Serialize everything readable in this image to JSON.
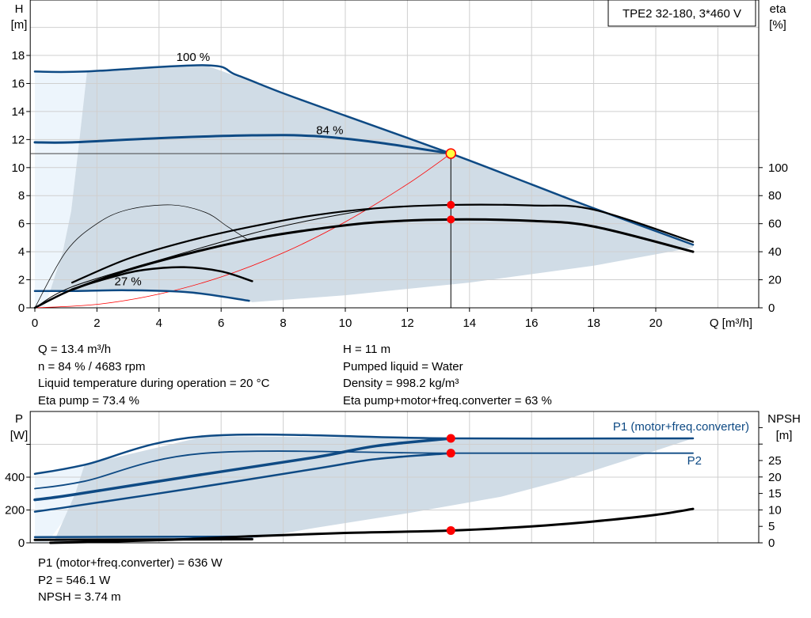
{
  "chart_data": [
    {
      "type": "line",
      "title": "TPE2 32-180, 3*460 V",
      "xlabel": "Q [m³/h]",
      "ylabel": "H",
      "ylabel_unit": "[m]",
      "y2label": "eta",
      "y2label_unit": "[%]",
      "xlim": [
        0,
        23.3
      ],
      "ylim": [
        0,
        22
      ],
      "y2lim": [
        0,
        220
      ],
      "xticks": [
        "0",
        "2",
        "4",
        "6",
        "8",
        "10",
        "12",
        "14",
        "16",
        "18",
        "20"
      ],
      "yticks": [
        "0",
        "2",
        "4",
        "6",
        "8",
        "10",
        "12",
        "14",
        "16",
        "18"
      ],
      "y2ticks": [
        "0",
        "20",
        "40",
        "60",
        "80",
        "100"
      ],
      "grid": true,
      "curve_labels": [
        "100 %",
        "84 %",
        "27 %"
      ],
      "head_series": {
        "max_100": [
          [
            0,
            16.85
          ],
          [
            1.6,
            16.85
          ],
          [
            5.5,
            17.3
          ],
          [
            6.5,
            16.6
          ],
          [
            8,
            15.3
          ],
          [
            10,
            13.7
          ],
          [
            13.4,
            11
          ],
          [
            16,
            8.8
          ],
          [
            18,
            7.1
          ],
          [
            21.2,
            4.5
          ]
        ],
        "speed_84": [
          [
            0,
            11.8
          ],
          [
            1.2,
            11.8
          ],
          [
            4,
            12.1
          ],
          [
            7,
            12.3
          ],
          [
            9,
            12.25
          ],
          [
            11,
            11.8
          ],
          [
            13.4,
            11
          ]
        ],
        "min_27": [
          [
            0,
            1.2
          ],
          [
            1.2,
            1.2
          ],
          [
            3,
            1.25
          ],
          [
            5,
            1.1
          ],
          [
            6.9,
            0.5
          ]
        ],
        "system_curve": [
          [
            0,
            0
          ],
          [
            2,
            0.245
          ],
          [
            4,
            0.98
          ],
          [
            6,
            2.2
          ],
          [
            8,
            3.92
          ],
          [
            10,
            6.13
          ],
          [
            12,
            8.82
          ],
          [
            13.4,
            11
          ]
        ]
      },
      "eta_series": {
        "eta_pump_100": [
          [
            1.2,
            18
          ],
          [
            3,
            35
          ],
          [
            5,
            48
          ],
          [
            7,
            58
          ],
          [
            9,
            66
          ],
          [
            11,
            71
          ],
          [
            13.4,
            73.4
          ],
          [
            16,
            73
          ],
          [
            18,
            70
          ],
          [
            21.2,
            47
          ]
        ],
        "eta_total_100": [
          [
            1.2,
            13
          ],
          [
            3,
            27
          ],
          [
            5,
            39
          ],
          [
            7,
            49
          ],
          [
            9,
            56
          ],
          [
            11,
            61
          ],
          [
            13.4,
            63
          ],
          [
            16,
            62
          ],
          [
            18,
            58
          ],
          [
            21.2,
            40
          ]
        ],
        "eta_other": [
          [
            0,
            0
          ],
          [
            1.2,
            15
          ],
          [
            4,
            34
          ],
          [
            7,
            53
          ],
          [
            9,
            63
          ],
          [
            11,
            71
          ]
        ],
        "eta_pump_min": [
          [
            0,
            0
          ],
          [
            1,
            40
          ],
          [
            2,
            60
          ],
          [
            3,
            70
          ],
          [
            4.4,
            73.4
          ],
          [
            5.5,
            68
          ],
          [
            6.2,
            58
          ],
          [
            6.9,
            48
          ]
        ],
        "eta_total_min": [
          [
            0,
            0
          ],
          [
            1.2,
            13
          ],
          [
            2.5,
            22
          ],
          [
            3.5,
            27
          ],
          [
            4.8,
            29
          ],
          [
            6,
            26
          ],
          [
            7,
            19
          ]
        ]
      },
      "operating_point": {
        "Q": 13.4,
        "H": 11,
        "eta_pump": 73.4,
        "eta_total": 63
      },
      "colors": {
        "curve": "#0e4a84",
        "area": "#d0dce6",
        "area_light": "#edf5fc",
        "system": "#ff0000",
        "point": "#ff0000",
        "duty_fill": "#ffff40"
      }
    },
    {
      "type": "line",
      "ylabel": "P",
      "ylabel_unit": "[W]",
      "y2label": "NPSH",
      "y2label_unit": "[m]",
      "xlim": [
        0,
        23.3
      ],
      "ylim": [
        0,
        800
      ],
      "y2lim": [
        0,
        40
      ],
      "yticks": [
        "0",
        "200",
        "400"
      ],
      "y2ticks": [
        "0",
        "5",
        "10",
        "15",
        "20",
        "25"
      ],
      "grid": true,
      "series_labels": [
        "P1 (motor+freq.converter)",
        "P2"
      ],
      "power_series": {
        "p1_max": [
          [
            0,
            420
          ],
          [
            1.6,
            475
          ],
          [
            5.5,
            650
          ],
          [
            13.4,
            636
          ],
          [
            21.2,
            636
          ]
        ],
        "p2_max": [
          [
            0,
            330
          ],
          [
            1.6,
            375
          ],
          [
            5.5,
            546
          ],
          [
            13.4,
            546
          ],
          [
            21.2,
            546
          ]
        ],
        "p1_84": [
          [
            0,
            262
          ],
          [
            1.2,
            292
          ],
          [
            5,
            405
          ],
          [
            9,
            520
          ],
          [
            11,
            590
          ],
          [
            13.4,
            636
          ]
        ],
        "p2_84": [
          [
            0,
            190
          ],
          [
            1.2,
            222
          ],
          [
            5,
            330
          ],
          [
            9,
            450
          ],
          [
            11,
            510
          ],
          [
            13.4,
            546
          ]
        ],
        "p1_min": [
          [
            0,
            35
          ],
          [
            7,
            38
          ]
        ],
        "p2_min": [
          [
            0,
            18
          ],
          [
            7,
            22
          ]
        ]
      },
      "npsh_series": [
        [
          0.5,
          0
        ],
        [
          4,
          0.8
        ],
        [
          7,
          2
        ],
        [
          10,
          3
        ],
        [
          13.4,
          3.74
        ],
        [
          16,
          5
        ],
        [
          18,
          6.5
        ],
        [
          20,
          8.5
        ],
        [
          21.2,
          10.3
        ]
      ],
      "operating_point": {
        "Q": 13.4,
        "P1": 636,
        "P2": 546.1,
        "NPSH": 3.74
      }
    }
  ],
  "info_top": {
    "left": [
      "Q = 13.4 m³/h",
      "n = 84 % / 4683 rpm",
      "Liquid temperature during operation = 20 °C",
      "Eta pump = 73.4 %"
    ],
    "right": [
      "H = 11 m",
      "Pumped liquid = Water",
      "Density = 998.2 kg/m³",
      "Eta pump+motor+freq.converter = 63 %"
    ]
  },
  "info_bottom": [
    "P1 (motor+freq.converter) = 636 W",
    "P2 = 546.1 W",
    "NPSH = 3.74 m"
  ]
}
